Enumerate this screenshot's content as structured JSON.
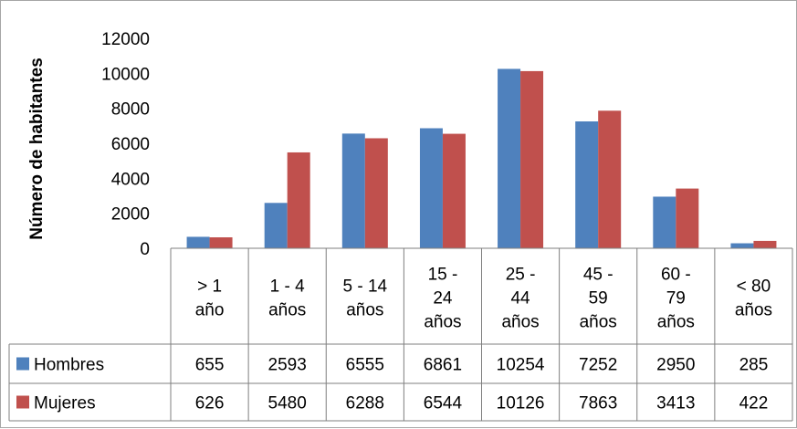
{
  "chart_data": {
    "type": "bar",
    "title": "",
    "xlabel": "",
    "ylabel": "Número de habitantes",
    "ylim": [
      0,
      12000
    ],
    "yticks": [
      0,
      2000,
      4000,
      6000,
      8000,
      10000,
      12000
    ],
    "grid": false,
    "legend": "data-table-left",
    "categories": [
      [
        "> 1",
        "año"
      ],
      [
        "1 - 4",
        "años"
      ],
      [
        "5 - 14",
        "años"
      ],
      [
        "15 -",
        "24",
        "años"
      ],
      [
        "25 -",
        "44",
        "años"
      ],
      [
        "45 -",
        "59",
        "años"
      ],
      [
        "60 -",
        "79",
        "años"
      ],
      [
        "< 80",
        "años"
      ]
    ],
    "series": [
      {
        "name": "Hombres",
        "color": "#4f81bd",
        "values": [
          655,
          2593,
          6555,
          6861,
          10254,
          7252,
          2950,
          285
        ]
      },
      {
        "name": "Mujeres",
        "color": "#c0504d",
        "values": [
          626,
          5480,
          6288,
          6544,
          10126,
          7863,
          3413,
          422
        ]
      }
    ]
  }
}
